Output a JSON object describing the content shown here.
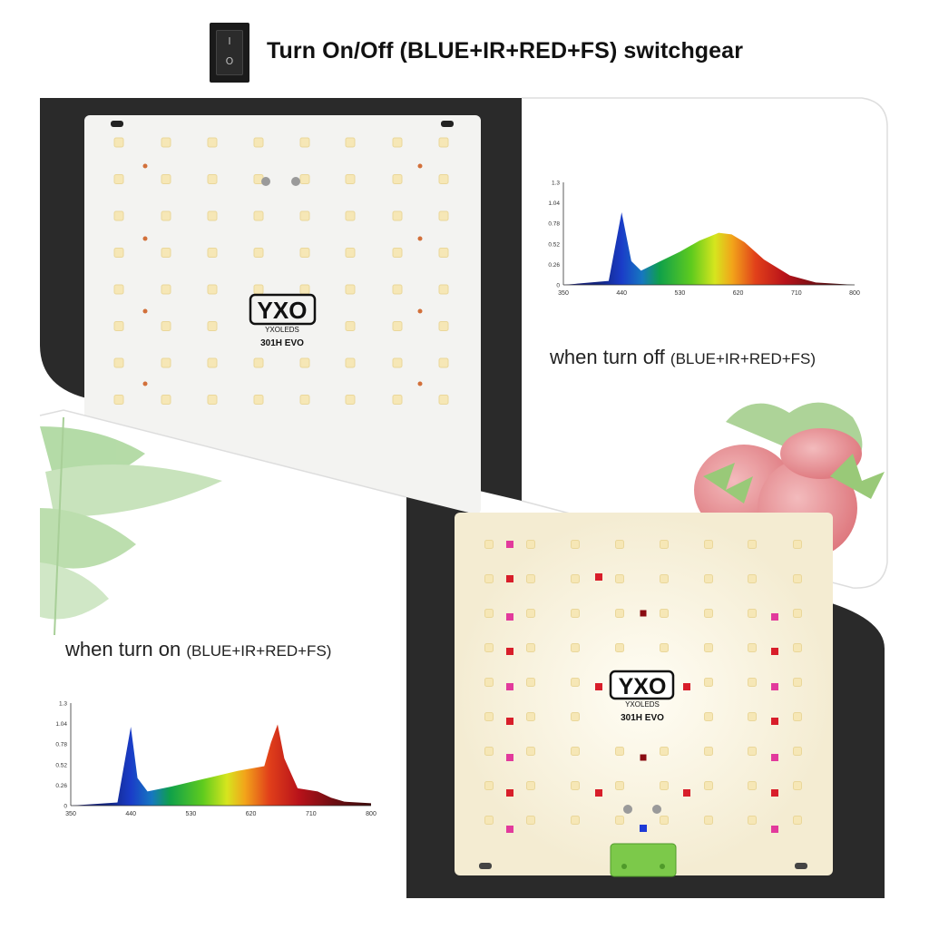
{
  "header": {
    "switch_on_symbol": "I",
    "switch_off_symbol": "O",
    "title": "Turn On/Off (BLUE+IR+RED+FS) switchgear"
  },
  "panel": {
    "brand_logo": "YXO",
    "brand_name": "YXOLEDS",
    "model": "301H EVO"
  },
  "captions": {
    "off_main": "when turn off ",
    "off_paren": "(BLUE+IR+RED+FS)",
    "on_main": "when turn on ",
    "on_paren": "(BLUE+IR+RED+FS)"
  },
  "chart_data": [
    {
      "type": "area",
      "state": "off",
      "x": [
        350,
        420,
        440,
        455,
        470,
        500,
        530,
        560,
        590,
        610,
        630,
        660,
        700,
        740,
        800
      ],
      "y": [
        0,
        0.05,
        0.92,
        0.3,
        0.18,
        0.3,
        0.42,
        0.56,
        0.66,
        0.64,
        0.54,
        0.32,
        0.12,
        0.03,
        0
      ],
      "xticks": [
        350,
        440,
        530,
        620,
        710,
        800
      ],
      "yticks": [
        0,
        0.26,
        0.52,
        0.78,
        1.04,
        1.3
      ],
      "xlim": [
        350,
        800
      ],
      "ylim": [
        0,
        1.3
      ]
    },
    {
      "type": "area",
      "state": "on",
      "x": [
        350,
        420,
        440,
        450,
        465,
        500,
        530,
        560,
        600,
        640,
        650,
        660,
        670,
        690,
        720,
        740,
        760,
        800
      ],
      "y": [
        0,
        0.04,
        1.0,
        0.35,
        0.18,
        0.24,
        0.3,
        0.36,
        0.44,
        0.5,
        0.8,
        1.03,
        0.6,
        0.22,
        0.18,
        0.1,
        0.05,
        0.03
      ],
      "xticks": [
        350,
        440,
        530,
        620,
        710,
        800
      ],
      "yticks": [
        0,
        0.26,
        0.52,
        0.78,
        1.04,
        1.3
      ],
      "xlim": [
        350,
        800
      ],
      "ylim": [
        0,
        1.3
      ]
    }
  ],
  "colors": {
    "dark_frame": "#2a2a2a",
    "board": "#f2f2f0",
    "led_warm": "#f6e7b6",
    "led_red": "#d81e2a",
    "led_pink": "#e23a9c",
    "led_blue": "#1d3ad6",
    "terminal_green": "#7cc94a"
  }
}
